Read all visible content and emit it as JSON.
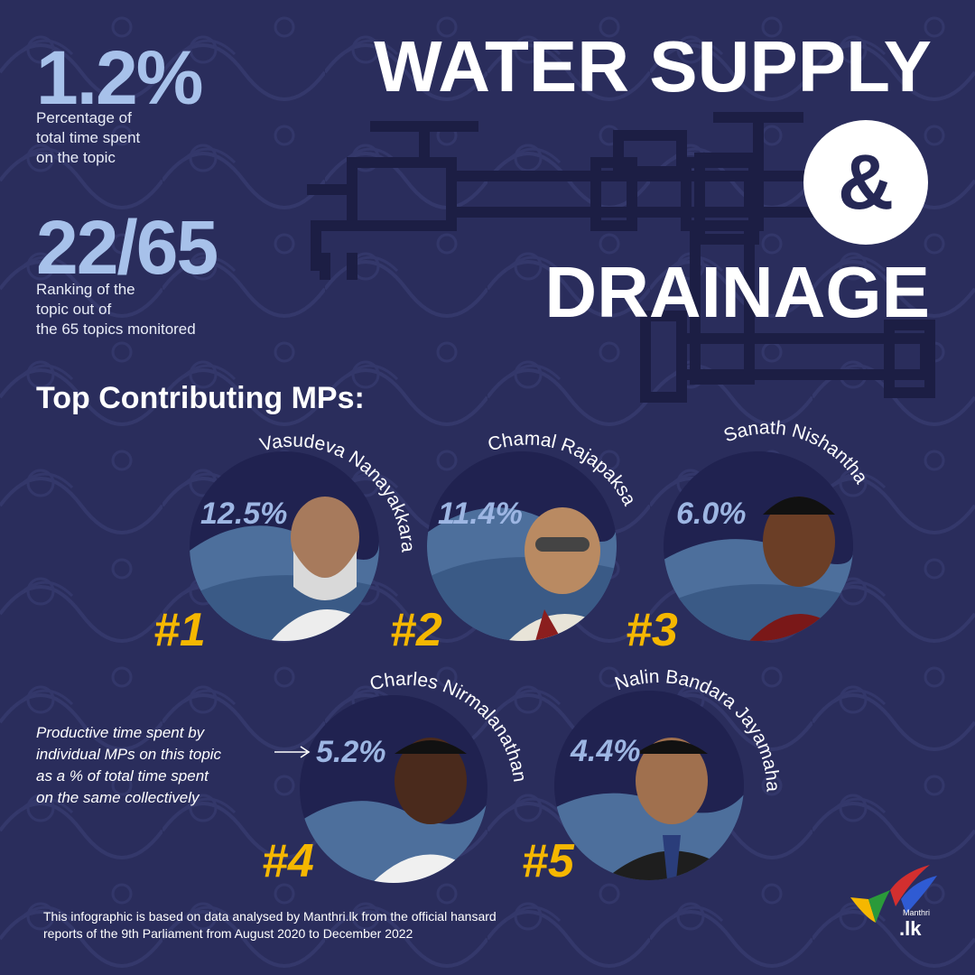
{
  "stats": [
    {
      "value": "1.2%",
      "description": "Percentage of\ntotal time spent\non the topic"
    },
    {
      "value": "22/65",
      "description": "Ranking of the\ntopic out of\nthe 65 topics monitored"
    }
  ],
  "title": {
    "line1": "WATER SUPPLY",
    "ampersand": "&",
    "line2": "DRAINAGE"
  },
  "section_heading": "Top Contributing MPs:",
  "mps": [
    {
      "rank": "#1",
      "name": "Vasudeva Nanayakkara",
      "percentage": "12.5%"
    },
    {
      "rank": "#2",
      "name": "Chamal Rajapaksa",
      "percentage": "11.4%"
    },
    {
      "rank": "#3",
      "name": "Sanath Nishantha",
      "percentage": "6.0%"
    },
    {
      "rank": "#4",
      "name": "Charles Nirmalanathan",
      "percentage": "5.2%"
    },
    {
      "rank": "#5",
      "name": "Nalin Bandara Jayamaha",
      "percentage": "4.4%"
    }
  ],
  "note": "Productive time spent by\nindividual MPs on this topic\nas a % of total time spent\non the same collectively",
  "footer": "This infographic is based on data analysed by Manthri.lk from the official hansard\nreports of the 9th Parliament from August 2020 to December 2022",
  "logo": {
    "brand": "Manthri",
    "domain": ".lk"
  },
  "colors": {
    "background": "#2a2d5c",
    "accent_yellow": "#f5b700",
    "stat_blue": "#a7c1ea",
    "wave_blue": "#4d6f9c"
  }
}
